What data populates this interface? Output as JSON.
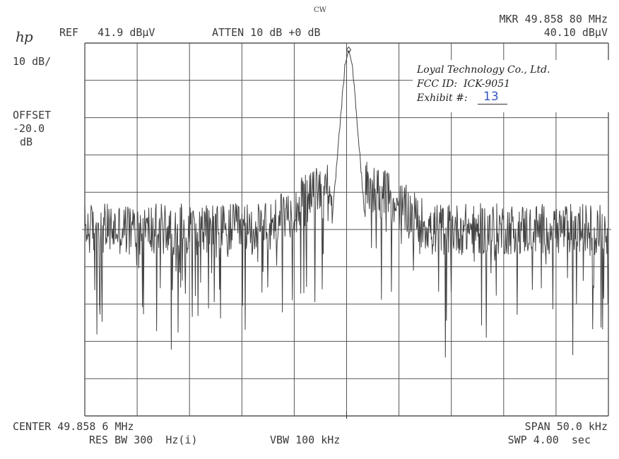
{
  "header": {
    "mode": "CW",
    "marker_label": "MKR 49.858 80 MHz",
    "marker_value": "40.10 dBμV",
    "ref": "REF   41.9 dBμV",
    "atten": "ATTEN 10 dB +0 dB",
    "logo": "hp"
  },
  "left_panel": {
    "scale": "10 dB/",
    "offset_title": "OFFSET",
    "offset_value": "-20.0",
    "offset_unit": "dB"
  },
  "footer": {
    "center": "CENTER 49.858 6 MHz",
    "span": "SPAN 50.0 kHz",
    "res_bw": "RES BW 300  Hz(i)",
    "vbw": "VBW 100 kHz",
    "swp": "SWP 4.00  sec"
  },
  "stamp": {
    "company": "Loyal Technology Co., Ltd.",
    "fcc_label": "FCC ID:  ICK-9051",
    "exhibit_label": "Exhibit #:",
    "exhibit_number": "13"
  },
  "chart_data": {
    "type": "line",
    "title": "",
    "xlabel": "",
    "ylabel": "",
    "x_center_mhz": 49.8586,
    "x_span_khz": 50.0,
    "x_range_khz_offset": [
      -25,
      25
    ],
    "ylim": [
      -58.1,
      41.9
    ],
    "y_unit": "dBμV",
    "grid": true,
    "grid_divisions": {
      "x": 10,
      "y": 10
    },
    "series": [
      {
        "values_summary": "single CW carrier peak over a noise floor",
        "peak": {
          "freq_mhz": 49.8588,
          "level_dbuv": 40.1
        },
        "noise_floor_dbuv": -8,
        "noise_peaks_dbuv": 0,
        "noise_minimum_dbuv": -40
      }
    ]
  }
}
